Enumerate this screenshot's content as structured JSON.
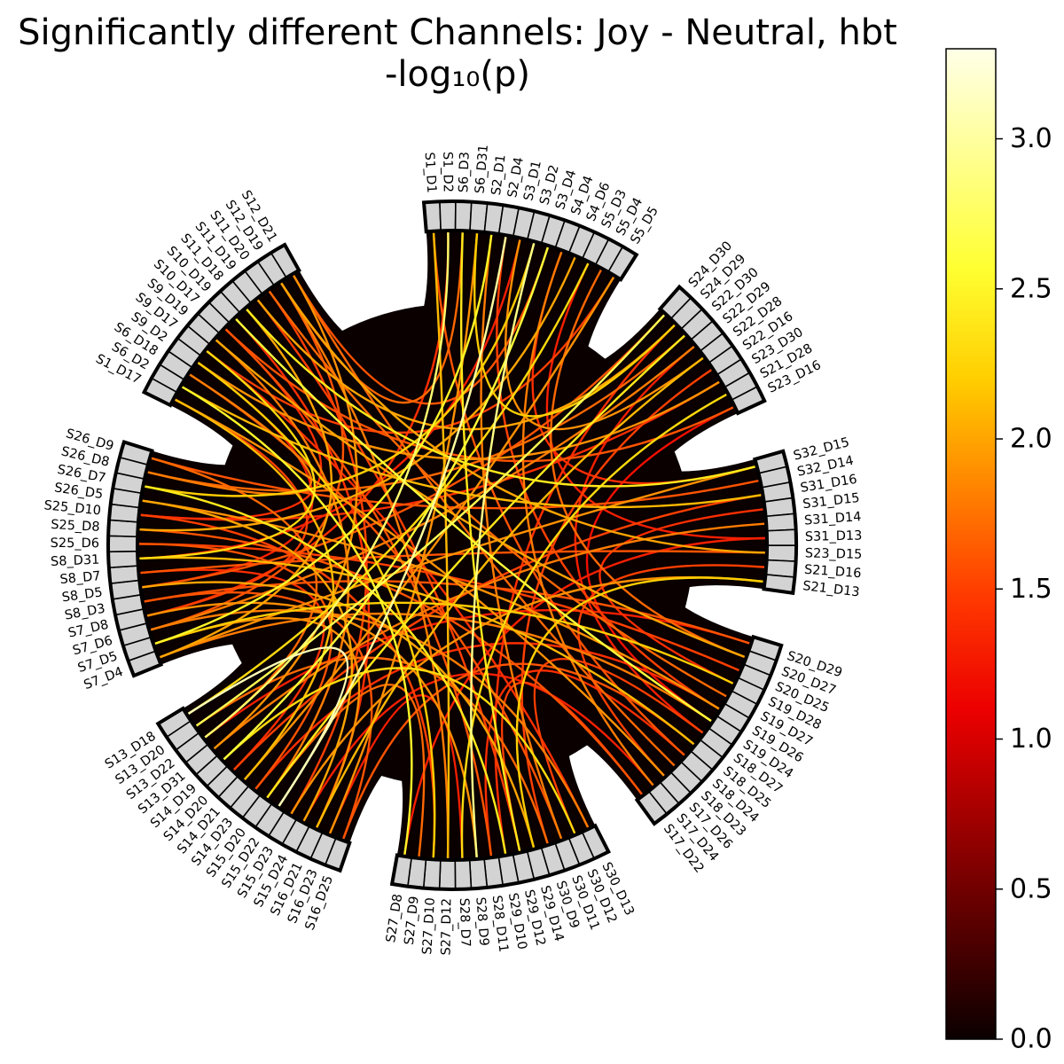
{
  "chart_data": {
    "type": "chord",
    "title": "Significantly different Channels: Joy - Neutral, hbt",
    "subtitle": "-log₁₀(p)",
    "colorbar": {
      "colormap": "hot",
      "range": [
        0.0,
        3.3
      ],
      "ticks": [
        "0.0",
        "0.5",
        "1.0",
        "1.5",
        "2.0",
        "2.5",
        "3.0"
      ],
      "tick_values": [
        0.0,
        0.5,
        1.0,
        1.5,
        2.0,
        2.5,
        3.0
      ],
      "stops": [
        "#0b0000",
        "#560000",
        "#a10000",
        "#ec0000",
        "#ff3800",
        "#ff8300",
        "#ffce00",
        "#ffff31",
        "#ffff8f",
        "#ffffe8"
      ]
    },
    "colors": {
      "background": "#0a0000",
      "node_fill": "#d3d3d3",
      "node_edge": "#000000"
    },
    "groups": [
      [
        "S1_D1",
        "S1_D2",
        "S6_D3",
        "S6_D31",
        "S2_D1",
        "S2_D4",
        "S3_D1",
        "S3_D2",
        "S3_D4",
        "S4_D4",
        "S4_D6",
        "S5_D3",
        "S5_D4",
        "S5_D5"
      ],
      [
        "S24_D30",
        "S24_D29",
        "S22_D30",
        "S22_D29",
        "S22_D28",
        "S22_D16",
        "S23_D30",
        "S21_D28",
        "S23_D16"
      ],
      [
        "S32_D15",
        "S32_D14",
        "S31_D16",
        "S31_D15",
        "S31_D14",
        "S31_D13",
        "S23_D15",
        "S21_D16",
        "S21_D13"
      ],
      [
        "S20_D29",
        "S20_D27",
        "S20_D25",
        "S19_D28",
        "S19_D27",
        "S19_D26",
        "S19_D24",
        "S18_D27",
        "S18_D25",
        "S18_D24",
        "S18_D23",
        "S17_D26",
        "S17_D24",
        "S17_D22"
      ],
      [
        "S30_D13",
        "S30_D12",
        "S30_D11",
        "S30_D9",
        "S29_D14",
        "S29_D12",
        "S29_D10",
        "S28_D11",
        "S28_D9",
        "S28_D7",
        "S27_D12",
        "S27_D10",
        "S27_D9",
        "S27_D8"
      ],
      [
        "S16_D25",
        "S16_D23",
        "S16_D21",
        "S15_D24",
        "S15_D23",
        "S15_D22",
        "S15_D20",
        "S14_D23",
        "S14_D21",
        "S14_D20",
        "S14_D19",
        "S13_D31",
        "S13_D22",
        "S13_D20",
        "S13_D18"
      ],
      [
        "S7_D4",
        "S7_D5",
        "S7_D6",
        "S7_D8",
        "S8_D3",
        "S8_D5",
        "S8_D7",
        "S8_D31",
        "S25_D6",
        "S25_D8",
        "S25_D10",
        "S26_D5",
        "S26_D7",
        "S26_D8",
        "S26_D9"
      ],
      [
        "S1_D17",
        "S6_D2",
        "S6_D18",
        "S9_D2",
        "S9_D17",
        "S9_D19",
        "S10_D17",
        "S10_D19",
        "S11_D18",
        "S11_D19",
        "S11_D20",
        "S12_D19",
        "S12_D21"
      ]
    ],
    "links": [
      [
        "S1_D1",
        "S18_D24",
        1.6
      ],
      [
        "S1_D1",
        "S27_D12",
        2.1
      ],
      [
        "S1_D2",
        "S13_D22",
        2.8
      ],
      [
        "S1_D2",
        "S7_D8",
        1.4
      ],
      [
        "S6_D3",
        "S29_D12",
        2.4
      ],
      [
        "S6_D3",
        "S12_D19",
        1.7
      ],
      [
        "S6_D31",
        "S16_D23",
        1.9
      ],
      [
        "S6_D31",
        "S24_D29",
        2.2
      ],
      [
        "S2_D1",
        "S7_D5",
        2.5
      ],
      [
        "S2_D1",
        "S30_D11",
        1.8
      ],
      [
        "S2_D4",
        "S15_D22",
        3.0
      ],
      [
        "S2_D4",
        "S19_D26",
        1.5
      ],
      [
        "S3_D1",
        "S8_D31",
        1.3
      ],
      [
        "S3_D1",
        "S22_D28",
        1.9
      ],
      [
        "S3_D2",
        "S26_D7",
        2.2
      ],
      [
        "S3_D2",
        "S28_D9",
        2.9
      ],
      [
        "S3_D4",
        "S12_D21",
        1.6
      ],
      [
        "S3_D4",
        "S14_D19",
        2.6
      ],
      [
        "S4_D4",
        "S32_D15",
        1.4
      ],
      [
        "S4_D4",
        "S17_D24",
        1.8
      ],
      [
        "S4_D6",
        "S25_D8",
        2.0
      ],
      [
        "S5_D3",
        "S31_D13",
        1.3
      ],
      [
        "S5_D3",
        "S13_D18",
        2.3
      ],
      [
        "S5_D4",
        "S20_D27",
        1.7
      ],
      [
        "S5_D5",
        "S9_D17",
        1.5
      ],
      [
        "S5_D5",
        "S14_D21",
        1.9
      ],
      [
        "S24_D30",
        "S13_D20",
        2.7
      ],
      [
        "S24_D30",
        "S8_D5",
        1.6
      ],
      [
        "S24_D29",
        "S29_D10",
        1.4
      ],
      [
        "S24_D29",
        "S11_D19",
        2.0
      ],
      [
        "S22_D30",
        "S26_D8",
        1.7
      ],
      [
        "S22_D30",
        "S15_D20",
        2.4
      ],
      [
        "S22_D29",
        "S18_D27",
        1.3
      ],
      [
        "S22_D29",
        "S7_D6",
        1.8
      ],
      [
        "S22_D28",
        "S16_D21",
        2.1
      ],
      [
        "S22_D16",
        "S30_D9",
        1.5
      ],
      [
        "S23_D30",
        "S9_D2",
        1.9
      ],
      [
        "S23_D30",
        "S25_D10",
        1.4
      ],
      [
        "S21_D28",
        "S28_D7",
        2.3
      ],
      [
        "S23_D16",
        "S19_D24",
        1.2
      ],
      [
        "S23_D16",
        "S10_D17",
        1.6
      ],
      [
        "S32_D15",
        "S11_D18",
        2.4
      ],
      [
        "S32_D15",
        "S7_D4",
        1.9
      ],
      [
        "S32_D14",
        "S26_D9",
        1.6
      ],
      [
        "S31_D16",
        "S14_D20",
        1.5
      ],
      [
        "S31_D16",
        "S6_D2",
        2.1
      ],
      [
        "S31_D15",
        "S19_D28",
        1.4
      ],
      [
        "S31_D14",
        "S13_D31",
        1.8
      ],
      [
        "S31_D13",
        "S27_D8",
        1.3
      ],
      [
        "S23_D15",
        "S12_D19",
        2.0
      ],
      [
        "S23_D15",
        "S8_D7",
        1.6
      ],
      [
        "S21_D16",
        "S17_D26",
        1.5
      ],
      [
        "S21_D13",
        "S15_D23",
        1.9
      ],
      [
        "S21_D13",
        "S29_D14",
        2.2
      ],
      [
        "S20_D29",
        "S8_D3",
        1.6
      ],
      [
        "S20_D29",
        "S13_D22",
        1.3
      ],
      [
        "S20_D27",
        "S9_D19",
        2.0
      ],
      [
        "S20_D25",
        "S25_D6",
        1.5
      ],
      [
        "S19_D28",
        "S7_D5",
        2.2
      ],
      [
        "S19_D27",
        "S11_D20",
        1.7
      ],
      [
        "S19_D26",
        "S14_D23",
        1.4
      ],
      [
        "S19_D26",
        "S26_D5",
        1.9
      ],
      [
        "S19_D24",
        "S10_D19",
        2.6
      ],
      [
        "S19_D24",
        "S7_D4",
        1.8
      ],
      [
        "S18_D27",
        "S30_D12",
        1.5
      ],
      [
        "S18_D25",
        "S16_D25",
        1.6
      ],
      [
        "S18_D25",
        "S8_D31",
        2.1
      ],
      [
        "S18_D24",
        "S28_D11",
        1.4
      ],
      [
        "S18_D23",
        "S12_D21",
        1.7
      ],
      [
        "S17_D26",
        "S1_D17",
        1.9
      ],
      [
        "S17_D24",
        "S15_D24",
        1.3
      ],
      [
        "S17_D22",
        "S25_D8",
        1.6
      ],
      [
        "S17_D22",
        "S29_D12",
        1.5
      ],
      [
        "S30_D13",
        "S7_D6",
        1.8
      ],
      [
        "S30_D13",
        "S9_D17",
        1.4
      ],
      [
        "S30_D12",
        "S14_D19",
        2.3
      ],
      [
        "S30_D11",
        "S6_D18",
        1.6
      ],
      [
        "S30_D9",
        "S13_D20",
        1.7
      ],
      [
        "S29_D14",
        "S8_D5",
        2.0
      ],
      [
        "S29_D12",
        "S11_D19",
        1.5
      ],
      [
        "S29_D10",
        "S26_D7",
        2.4
      ],
      [
        "S28_D11",
        "S10_D17",
        1.6
      ],
      [
        "S28_D9",
        "S7_D8",
        1.9
      ],
      [
        "S28_D7",
        "S16_D23",
        1.3
      ],
      [
        "S27_D12",
        "S12_D19",
        1.8
      ],
      [
        "S27_D10",
        "S9_D2",
        2.2
      ],
      [
        "S27_D10",
        "S25_D10",
        1.5
      ],
      [
        "S27_D9",
        "S15_D20",
        1.7
      ],
      [
        "S27_D8",
        "S6_D2",
        2.5
      ],
      [
        "S16_D25",
        "S8_D3",
        1.6
      ],
      [
        "S16_D21",
        "S7_D5",
        1.9
      ],
      [
        "S16_D21",
        "S10_D19",
        1.4
      ],
      [
        "S15_D24",
        "S26_D5",
        2.0
      ],
      [
        "S15_D23",
        "S11_D20",
        1.5
      ],
      [
        "S15_D22",
        "S13_D18",
        3.1
      ],
      [
        "S15_D20",
        "S9_D19",
        1.8
      ],
      [
        "S14_D23",
        "S25_D6",
        1.6
      ],
      [
        "S14_D21",
        "S1_D17",
        2.1
      ],
      [
        "S14_D20",
        "S8_D7",
        1.4
      ],
      [
        "S13_D31",
        "S12_D21",
        1.9
      ],
      [
        "S13_D22",
        "S26_D9",
        1.7
      ],
      [
        "S7_D4",
        "S11_D18",
        2.0
      ],
      [
        "S7_D6",
        "S12_D19",
        1.6
      ],
      [
        "S7_D8",
        "S1_D17",
        1.5
      ],
      [
        "S8_D31",
        "S9_D17",
        2.3
      ],
      [
        "S25_D10",
        "S10_D17",
        1.4
      ],
      [
        "S26_D8",
        "S6_D18",
        1.8
      ],
      [
        "S8_D5",
        "S9_D2",
        1.3
      ]
    ]
  }
}
